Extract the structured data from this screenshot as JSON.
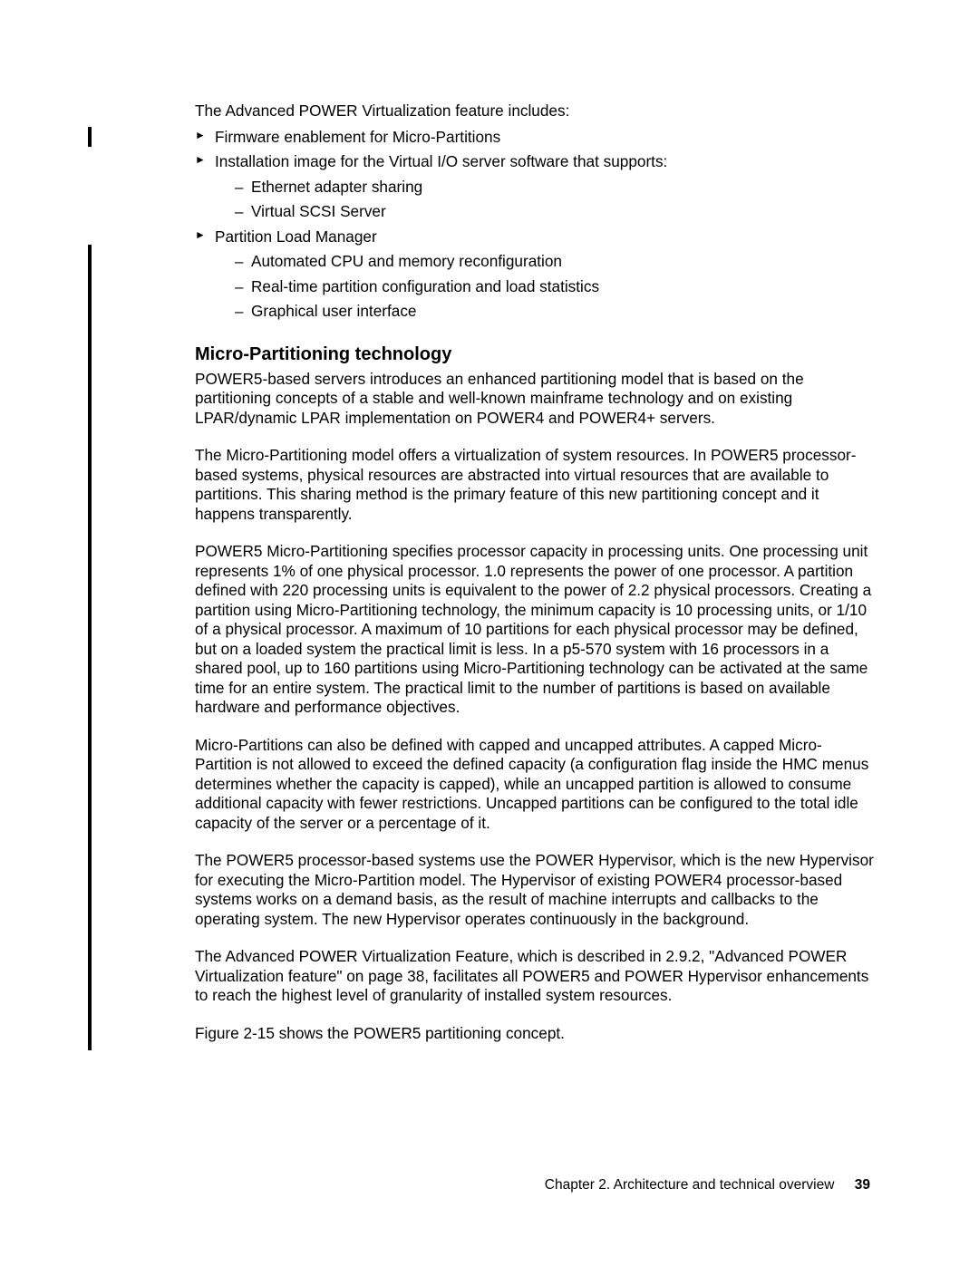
{
  "intro": "The Advanced POWER Virtualization feature includes:",
  "bullets": {
    "b1": "Firmware enablement for Micro-Partitions",
    "b2": "Installation image for the Virtual I/O server software that supports:",
    "b2a": "Ethernet adapter sharing",
    "b2b": "Virtual SCSI Server",
    "b3": "Partition Load Manager",
    "b3a": "Automated CPU and memory reconfiguration",
    "b3b": "Real-time partition configuration and load statistics",
    "b3c": "Graphical user interface"
  },
  "heading": "Micro-Partitioning technology",
  "p1": "POWER5-based servers introduces an enhanced partitioning model that is based on the partitioning concepts of a stable and well-known mainframe technology and on existing LPAR/dynamic LPAR implementation on POWER4 and POWER4+ servers.",
  "p2": "The Micro-Partitioning model offers a virtualization of system resources. In POWER5 processor-based systems, physical resources are abstracted into virtual resources that are available to partitions. This sharing method is the primary feature of this new partitioning concept and it happens transparently.",
  "p3": "POWER5 Micro-Partitioning specifies processor capacity in processing units. One processing unit represents 1% of one physical processor. 1.0 represents the power of one processor. A partition defined with 220 processing units is equivalent to the power of 2.2 physical processors. Creating a partition using Micro-Partitioning technology, the minimum capacity is 10 processing units, or 1/10 of a physical processor. A maximum of 10 partitions for each physical processor may be defined, but on a loaded system the practical limit is less. In a p5-570 system with 16 processors in a shared pool, up to 160 partitions using Micro-Partitioning technology can be activated at the same time for an entire system. The practical limit to the number of partitions is based on available hardware and performance objectives.",
  "p4": "Micro-Partitions can also be defined with capped and uncapped attributes. A capped Micro-Partition is not allowed to exceed the defined capacity (a configuration flag inside the HMC menus determines whether the capacity is capped), while an uncapped partition is allowed to consume additional capacity with fewer restrictions. Uncapped partitions can be configured to the total idle capacity of the server or a percentage of it.",
  "p5": "The POWER5 processor-based systems use the POWER Hypervisor, which is the new Hypervisor for executing the Micro-Partition model. The Hypervisor of existing POWER4 processor-based systems works on a demand basis, as the result of machine interrupts and callbacks to the operating system. The new Hypervisor operates continuously in the background.",
  "p6": "The Advanced POWER Virtualization Feature, which is described in 2.9.2, \"Advanced POWER Virtualization feature\" on page 38, facilitates all POWER5 and POWER Hypervisor enhancements to reach the highest level of granularity of installed system resources.",
  "p7": "Figure 2-15 shows the POWER5 partitioning concept.",
  "footer": {
    "chapter": "Chapter 2. Architecture and technical overview",
    "page": "39"
  }
}
